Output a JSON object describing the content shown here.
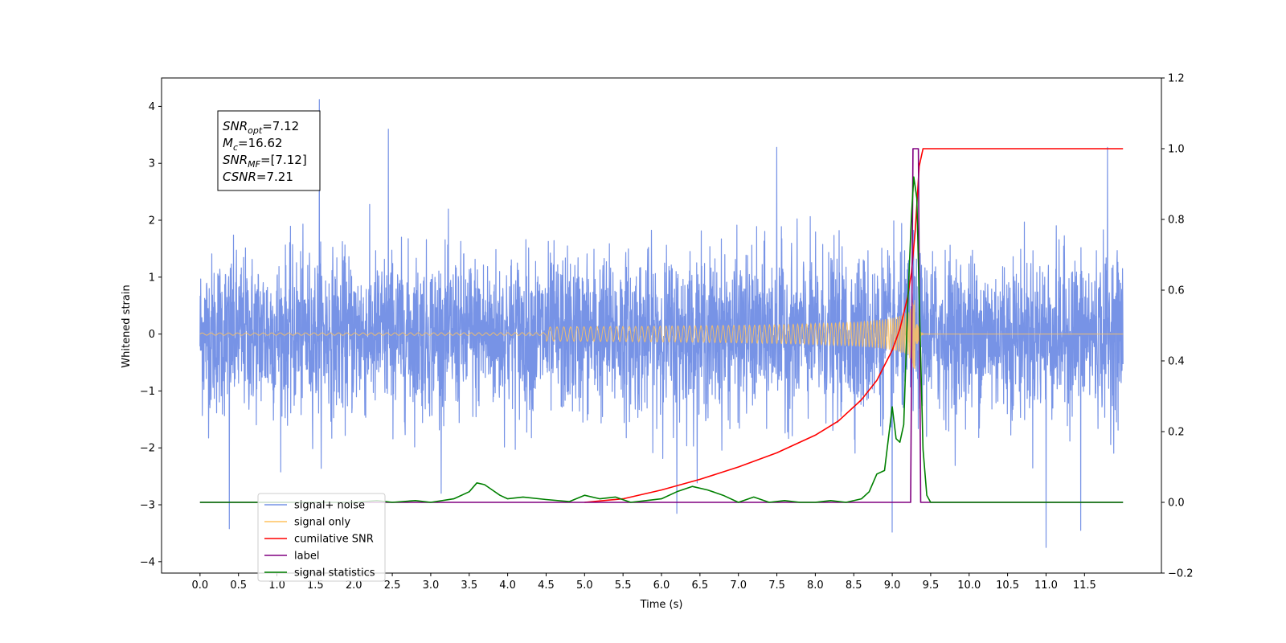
{
  "chart_data": {
    "type": "line",
    "xlabel": "Time (s)",
    "ylabel_left": "Whitened strain",
    "ylabel_right": "",
    "xlim": [
      -0.5,
      12.5
    ],
    "ylim_left": [
      -4.2,
      4.5
    ],
    "ylim_right": [
      -0.2,
      1.2
    ],
    "x_ticks": [
      0.0,
      0.5,
      1.0,
      1.5,
      2.0,
      2.5,
      3.0,
      3.5,
      4.0,
      4.5,
      5.0,
      5.5,
      6.0,
      6.5,
      7.0,
      7.5,
      8.0,
      8.5,
      9.0,
      9.5,
      10.0,
      10.5,
      11.0,
      11.5
    ],
    "x_tick_labels": [
      "0.0",
      "0.5",
      "1.0",
      "1.5",
      "2.0",
      "2.5",
      "3.0",
      "3.5",
      "4.0",
      "4.5",
      "5.0",
      "5.5",
      "6.0",
      "6.5",
      "7.0",
      "7.5",
      "8.0",
      "8.5",
      "9.0",
      "9.5",
      "10.0",
      "10.5",
      "11.0",
      "11.5"
    ],
    "y_left_ticks": [
      4,
      3,
      2,
      1,
      0,
      -1,
      -2,
      -3,
      -4
    ],
    "y_left_tick_labels": [
      "4",
      "3",
      "2",
      "1",
      "0",
      "−1",
      "−2",
      "−3",
      "−4"
    ],
    "y_right_ticks": [
      1.2,
      1.0,
      0.8,
      0.6,
      0.4,
      0.2,
      0.0,
      -0.2
    ],
    "y_right_tick_labels": [
      "1.2",
      "1.0",
      "0.8",
      "0.6",
      "0.4",
      "0.2",
      "0.0",
      "−0.2"
    ],
    "legend_position": "lower-left",
    "grid": false,
    "info_box": {
      "lines": [
        {
          "base": "SNR",
          "sub": "opt",
          "rest": "=7.12"
        },
        {
          "base": "M",
          "sub": "c",
          "rest": "=16.62"
        },
        {
          "base": "SNR",
          "sub": "MF",
          "rest": "=[7.12]"
        },
        {
          "base": "CSNR",
          "sub": "",
          "rest": "=7.21"
        }
      ]
    },
    "legend": [
      {
        "label": "signal+ noise",
        "color": "#7793e6"
      },
      {
        "label": "signal only",
        "color": "#ffc25e"
      },
      {
        "label": "cumilative SNR",
        "color": "#ff0000"
      },
      {
        "label": "label",
        "color": "#800080"
      },
      {
        "label": "signal statistics",
        "color": "#008000"
      }
    ],
    "series": [
      {
        "name": "signal+ noise",
        "axis": "left",
        "kind": "noise",
        "color": "#7793e6",
        "x_range": [
          0.0,
          12.0
        ],
        "typical_band": [
          -1.6,
          1.6
        ],
        "extremes": [
          {
            "x": 1.55,
            "y": 4.12
          },
          {
            "x": 2.45,
            "y": 3.6
          },
          {
            "x": 0.38,
            "y": -3.42
          },
          {
            "x": 9.0,
            "y": -3.48
          },
          {
            "x": 11.0,
            "y": -3.75
          },
          {
            "x": 11.8,
            "y": 3.28
          },
          {
            "x": 7.5,
            "y": 3.28
          },
          {
            "x": 11.45,
            "y": -3.45
          },
          {
            "x": 6.2,
            "y": -3.15
          }
        ]
      },
      {
        "name": "signal only",
        "axis": "left",
        "kind": "chirp",
        "color": "#ffc25e",
        "x_range": [
          0.0,
          12.0
        ],
        "merger_x": 9.3,
        "peak_amplitude": 0.7
      },
      {
        "name": "cumilative SNR",
        "axis": "right",
        "color": "#ff0000",
        "x": [
          5.0,
          5.5,
          6.0,
          6.5,
          7.0,
          7.5,
          8.0,
          8.3,
          8.6,
          8.8,
          9.0,
          9.1,
          9.2,
          9.25,
          9.3,
          9.35,
          9.4,
          12.0
        ],
        "y": [
          0.0,
          0.01,
          0.035,
          0.065,
          0.1,
          0.14,
          0.19,
          0.23,
          0.29,
          0.345,
          0.43,
          0.49,
          0.58,
          0.65,
          0.77,
          0.95,
          1.0,
          1.0
        ]
      },
      {
        "name": "label",
        "axis": "right",
        "color": "#800080",
        "x": [
          0.0,
          9.24,
          9.27,
          9.34,
          9.37,
          12.0
        ],
        "y": [
          0.0,
          0.0,
          1.0,
          1.0,
          -0.0,
          -0.0
        ]
      },
      {
        "name": "signal statistics",
        "axis": "right",
        "color": "#008000",
        "x": [
          0.0,
          2.0,
          2.3,
          2.5,
          2.8,
          3.0,
          3.3,
          3.5,
          3.6,
          3.7,
          3.8,
          3.9,
          4.0,
          4.2,
          4.5,
          4.8,
          5.0,
          5.2,
          5.4,
          5.6,
          5.8,
          6.0,
          6.2,
          6.4,
          6.6,
          6.8,
          7.0,
          7.2,
          7.4,
          7.6,
          7.8,
          8.0,
          8.2,
          8.4,
          8.6,
          8.7,
          8.8,
          8.9,
          9.0,
          9.05,
          9.1,
          9.15,
          9.2,
          9.25,
          9.28,
          9.32,
          9.36,
          9.4,
          9.45,
          9.5,
          9.55,
          9.6,
          12.0
        ],
        "y": [
          0.0,
          0.0,
          0.005,
          0.0,
          0.005,
          0.0,
          0.01,
          0.03,
          0.055,
          0.05,
          0.035,
          0.02,
          0.01,
          0.015,
          0.008,
          0.002,
          0.02,
          0.01,
          0.015,
          0.0,
          0.005,
          0.01,
          0.03,
          0.045,
          0.035,
          0.02,
          0.0,
          0.015,
          0.0,
          0.005,
          0.0,
          0.0,
          0.005,
          0.0,
          0.01,
          0.03,
          0.08,
          0.09,
          0.27,
          0.18,
          0.17,
          0.22,
          0.55,
          0.81,
          0.92,
          0.86,
          0.5,
          0.15,
          0.02,
          0.0,
          0.0,
          0.0,
          0.0
        ]
      }
    ]
  }
}
